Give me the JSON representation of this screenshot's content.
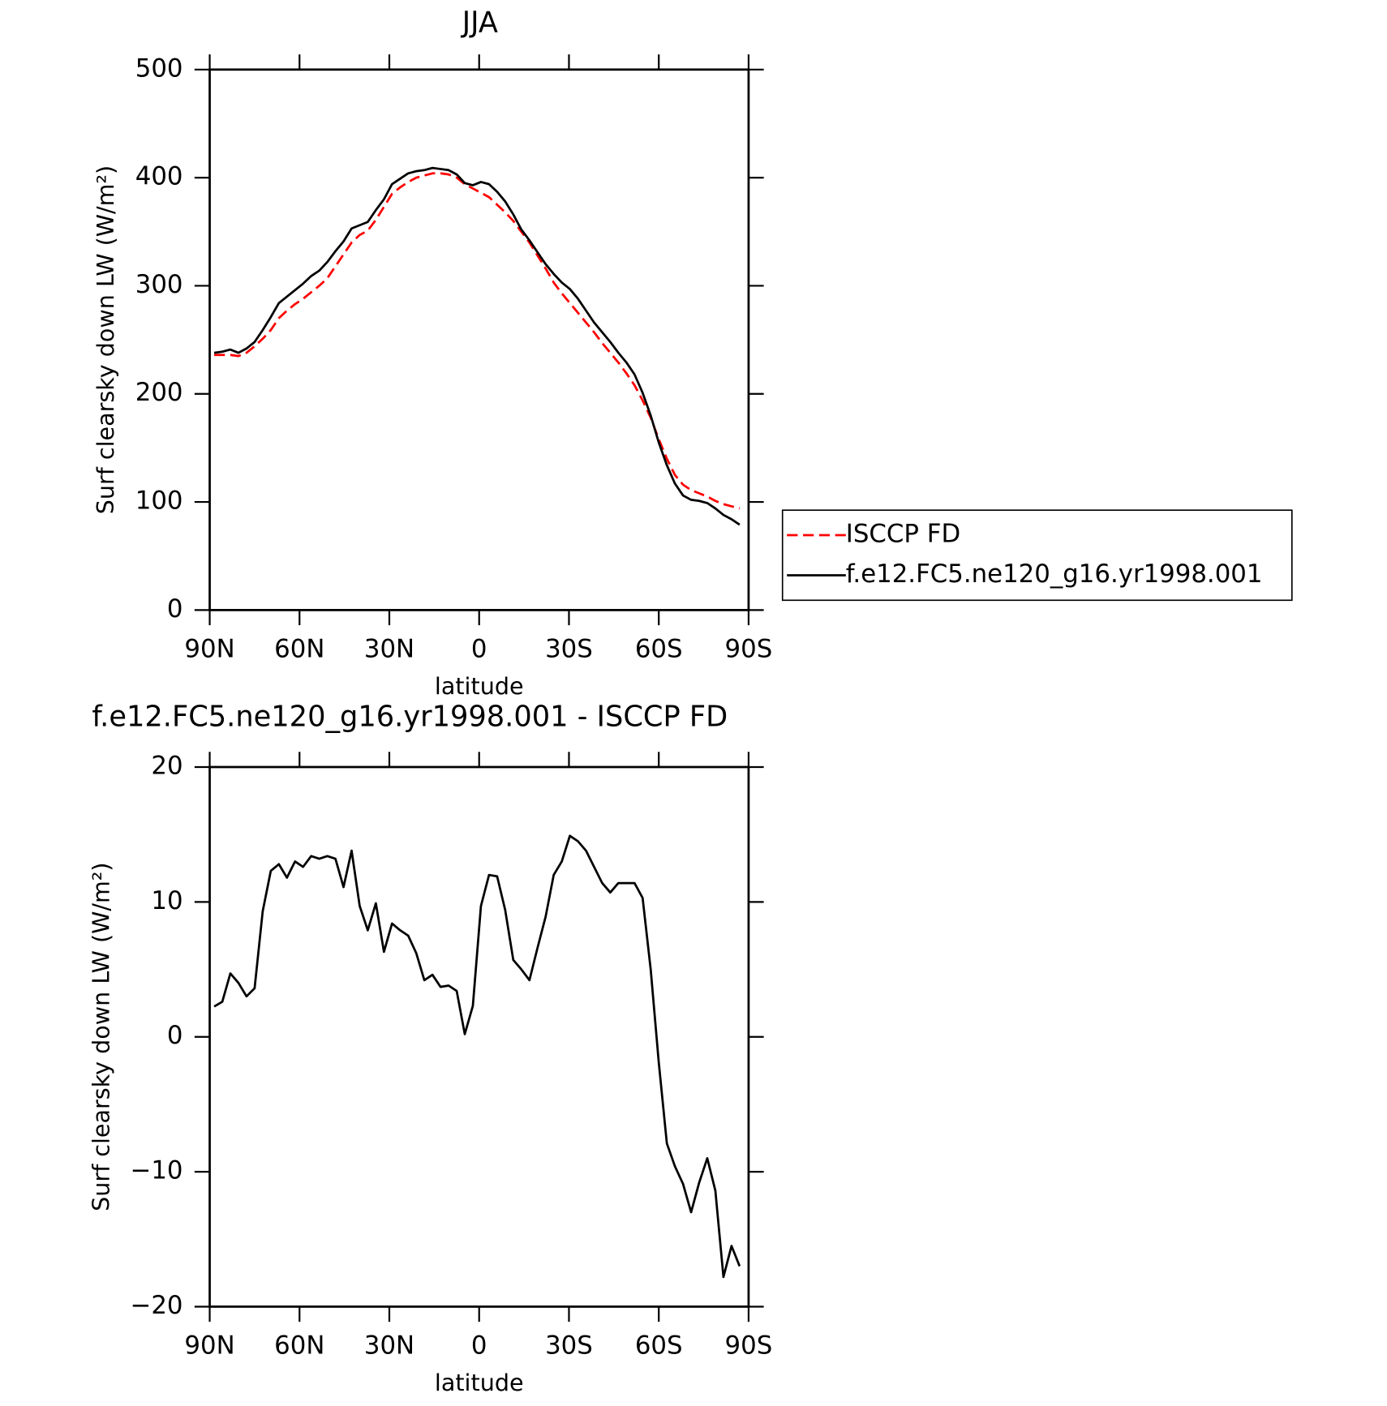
{
  "chart_data": [
    {
      "type": "line",
      "title": "JJA",
      "xlabel": "latitude",
      "ylabel": "Surf clearsky down LW (W/m²)",
      "xlim": [
        90,
        -90
      ],
      "xticks": [
        {
          "value": 90,
          "label": "90N"
        },
        {
          "value": 60,
          "label": "60N"
        },
        {
          "value": 30,
          "label": "30N"
        },
        0,
        {
          "value": -30,
          "label": "30S"
        },
        {
          "value": -60,
          "label": "60S"
        },
        {
          "value": -90,
          "label": "90S"
        }
      ],
      "ylim": [
        0,
        500
      ],
      "yticks": [
        0,
        100,
        200,
        300,
        400,
        500
      ],
      "legend": "right",
      "x": [
        88.5,
        85.8,
        83.1,
        80.4,
        77.7,
        75.0,
        72.3,
        69.6,
        66.9,
        64.2,
        61.5,
        58.8,
        56.1,
        53.4,
        50.7,
        48.0,
        45.3,
        42.6,
        39.9,
        37.2,
        34.5,
        31.8,
        29.1,
        26.4,
        23.7,
        21.0,
        18.3,
        15.6,
        12.9,
        10.2,
        7.5,
        4.8,
        2.1,
        -0.6,
        -3.3,
        -6.0,
        -8.7,
        -11.4,
        -14.1,
        -16.8,
        -19.5,
        -22.2,
        -24.9,
        -27.6,
        -30.3,
        -33.0,
        -35.7,
        -38.4,
        -41.1,
        -43.8,
        -46.5,
        -49.2,
        -51.9,
        -54.6,
        -57.3,
        -60.0,
        -62.7,
        -65.4,
        -68.1,
        -70.8,
        -73.5,
        -76.2,
        -78.9,
        -81.6,
        -84.3,
        -87.0
      ],
      "series": [
        {
          "name": "ISCCP FD",
          "color": "#ff0000",
          "dash": "dashed",
          "values": [
            236,
            236,
            236,
            235,
            238,
            244,
            251,
            259,
            270,
            277,
            283,
            288,
            294,
            300,
            307,
            318,
            329,
            340,
            347,
            351,
            361,
            373,
            385,
            391,
            396,
            400,
            402,
            404,
            404,
            403,
            400,
            394,
            390,
            386,
            382,
            375,
            368,
            360,
            350,
            340,
            328,
            316,
            303,
            293,
            284,
            275,
            266,
            257,
            247,
            238,
            229,
            219,
            208,
            194,
            178,
            158,
            140,
            125,
            116,
            111,
            108,
            105,
            101,
            98,
            96,
            94
          ]
        },
        {
          "name": "f.e12.FC5.ne120_g16.yr1998.001",
          "color": "#000000",
          "dash": "solid",
          "values": [
            238,
            239,
            241,
            238,
            242,
            248,
            259,
            271,
            284,
            290,
            296,
            302,
            309,
            314,
            322,
            332,
            341,
            353,
            356,
            359,
            370,
            380,
            394,
            399,
            404,
            406,
            407,
            409,
            408,
            407,
            403,
            395,
            393,
            396,
            394,
            387,
            378,
            366,
            352,
            342,
            331,
            320,
            311,
            303,
            297,
            288,
            277,
            266,
            257,
            248,
            238,
            229,
            218,
            201,
            180,
            155,
            134,
            117,
            106,
            102,
            101,
            99,
            94,
            88,
            84,
            79
          ]
        }
      ]
    },
    {
      "type": "line",
      "title": "f.e12.FC5.ne120_g16.yr1998.001 - ISCCP FD",
      "xlabel": "latitude",
      "ylabel": "Surf clearsky down LW (W/m²)",
      "xlim": [
        90,
        -90
      ],
      "xticks": [
        {
          "value": 90,
          "label": "90N"
        },
        {
          "value": 60,
          "label": "60N"
        },
        {
          "value": 30,
          "label": "30N"
        },
        0,
        {
          "value": -30,
          "label": "30S"
        },
        {
          "value": -60,
          "label": "60S"
        },
        {
          "value": -90,
          "label": "90S"
        }
      ],
      "ylim": [
        -20,
        20
      ],
      "yticks": [
        {
          "value": -20,
          "label": "−20"
        },
        {
          "value": -10,
          "label": "−10"
        },
        0,
        10,
        20
      ],
      "x": [
        88.5,
        85.8,
        83.1,
        80.4,
        77.7,
        75.0,
        72.3,
        69.6,
        66.9,
        64.2,
        61.5,
        58.8,
        56.1,
        53.4,
        50.7,
        48.0,
        45.3,
        42.6,
        39.9,
        37.2,
        34.5,
        31.8,
        29.1,
        26.4,
        23.7,
        21.0,
        18.3,
        15.6,
        12.9,
        10.2,
        7.5,
        4.8,
        2.1,
        -0.6,
        -3.3,
        -6.0,
        -8.7,
        -11.4,
        -14.1,
        -16.8,
        -19.5,
        -22.2,
        -24.9,
        -27.6,
        -30.3,
        -33.0,
        -35.7,
        -38.4,
        -41.1,
        -43.8,
        -46.5,
        -49.2,
        -51.9,
        -54.6,
        -57.3,
        -60.0,
        -62.7,
        -65.4,
        -68.1,
        -70.8,
        -73.5,
        -76.2,
        -78.9,
        -81.6,
        -84.3,
        -87.0
      ],
      "series": [
        {
          "color": "#000000",
          "dash": "solid",
          "values": [
            2.25,
            2.6,
            4.7,
            4.0,
            3.0,
            3.6,
            9.3,
            12.3,
            12.8,
            11.8,
            13.0,
            12.6,
            13.4,
            13.2,
            13.4,
            13.2,
            11.1,
            13.8,
            9.7,
            7.9,
            9.9,
            6.3,
            8.4,
            7.9,
            7.5,
            6.2,
            4.2,
            4.6,
            3.7,
            3.8,
            3.4,
            0.2,
            2.3,
            9.7,
            12.0,
            11.9,
            9.4,
            5.7,
            5.0,
            4.2,
            6.6,
            8.9,
            12.0,
            13.0,
            14.9,
            14.5,
            13.8,
            12.6,
            11.4,
            10.7,
            11.4,
            11.4,
            11.4,
            10.3,
            5.0,
            -1.9,
            -7.9,
            -9.6,
            -10.9,
            -13.0,
            -10.8,
            -9.0,
            -11.4,
            -17.8,
            -15.5,
            -17.0
          ]
        }
      ]
    }
  ]
}
